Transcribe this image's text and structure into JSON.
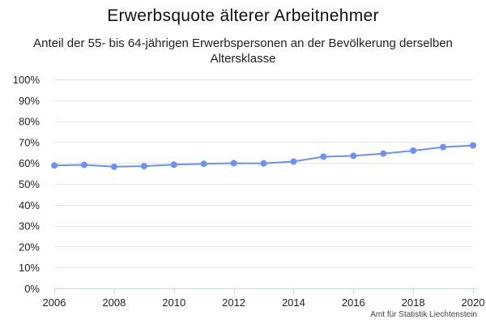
{
  "chart_data": {
    "type": "line",
    "title": "Erwerbsquote älterer Arbeitnehmer",
    "subtitle": "Anteil der 55- bis 64-jährigen Erwerbspersonen an der Bevölkerung derselben Altersklasse",
    "xlabel": "",
    "ylabel": "",
    "x": [
      2006,
      2007,
      2008,
      2009,
      2010,
      2011,
      2012,
      2013,
      2014,
      2015,
      2016,
      2017,
      2018,
      2019,
      2020
    ],
    "series": [
      {
        "values": [
          58.8,
          59.1,
          58.2,
          58.5,
          59.2,
          59.6,
          59.9,
          59.8,
          60.7,
          63.0,
          63.4,
          64.5,
          65.9,
          67.6,
          68.4
        ]
      }
    ],
    "xlim": [
      2006,
      2020
    ],
    "ylim": [
      0,
      100
    ],
    "xticks": [
      2006,
      2008,
      2010,
      2012,
      2014,
      2016,
      2018,
      2020
    ],
    "yticks": [
      0,
      10,
      20,
      30,
      40,
      50,
      60,
      70,
      80,
      90,
      100
    ],
    "ytick_labels": [
      "0%",
      "10%",
      "20%",
      "30%",
      "40%",
      "50%",
      "60%",
      "70%",
      "80%",
      "90%",
      "100%"
    ],
    "grid": true,
    "legend": "none",
    "line_color": "#6c91f2",
    "grid_color": "#e6e6e6",
    "axis_color": "#ccd6eb"
  },
  "credit": "Amt für Statistik Liechtenstein"
}
